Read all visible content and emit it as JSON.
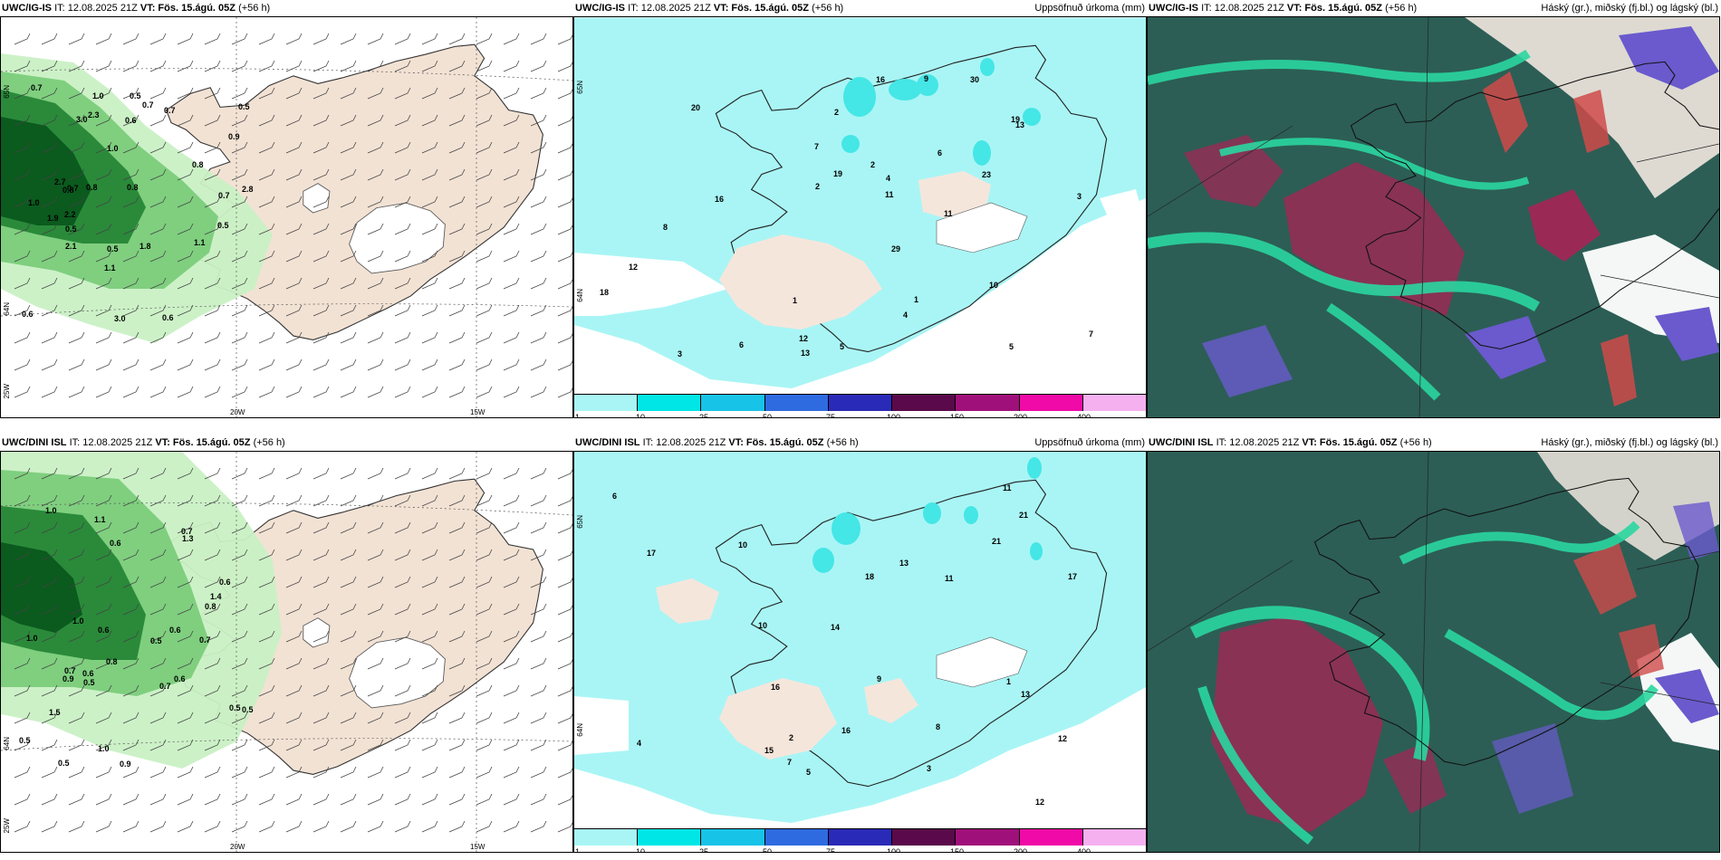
{
  "colors": {
    "sea_white": "#ffffff",
    "land_beige": "#f2e2d4",
    "precip_cyan": "#a9f5f5",
    "precip_cyan2": "#45e6e6",
    "wind_green_light": "#c9f0c4",
    "wind_green_mid": "#7fcf7f",
    "wind_green_dark": "#2a8a3a",
    "wind_green_darkest": "#0b5a1e",
    "cloud_teal": "#2c5e55",
    "cloud_green": "#2ad6a0",
    "cloud_maroon": "#9a2a55",
    "cloud_blue": "#6a5acd",
    "cloud_red": "#d04a4a"
  },
  "panels": [
    {
      "id": "top-left",
      "model": "UWC/IG-IS",
      "title_left": "IT: 12.08.2025 21Z",
      "vt_label": "VT: Fös. 15.ágú. 05Z",
      "lead": "(+56 h)",
      "title_right": "",
      "axis_labels": [
        "20W",
        "15W",
        "25W",
        "65N",
        "64N"
      ],
      "value_labels": [
        "0.7",
        "0.7",
        "0.5",
        "0.5",
        "1.0",
        "1.1",
        "1.0",
        "2.1",
        "1.9",
        "0.6",
        "0.6",
        "0.5",
        "3.0",
        "2.7",
        "1.8",
        "3.0",
        "2.8",
        "2.2",
        "2.3",
        "0.8",
        "1.0",
        "0.9",
        "0.7",
        "0.5",
        "1.1",
        "0.7",
        "0.8",
        "0.7",
        "0.5",
        "0.6",
        "0.8",
        "0.8"
      ]
    },
    {
      "id": "top-middle",
      "model": "UWC/IG-IS",
      "title_left": "IT: 12.08.2025 21Z",
      "vt_label": "VT: Fös. 15.ágú. 05Z",
      "lead": "(+56 h)",
      "title_right": "Uppsöfnuð úrkoma (mm)",
      "axis_labels": [
        "65N",
        "64N"
      ],
      "value_labels": [
        "13",
        "19",
        "29",
        "23",
        "12",
        "19",
        "20",
        "16",
        "18",
        "12",
        "16",
        "11",
        "30",
        "13",
        "10",
        "5",
        "4",
        "7",
        "6",
        "3",
        "2",
        "1",
        "8",
        "9",
        "11",
        "4",
        "5",
        "3",
        "2",
        "6",
        "7",
        "1",
        "2"
      ],
      "colorbar": [
        "1",
        "10",
        "25",
        "50",
        "75",
        "100",
        "150",
        "200",
        "400"
      ]
    },
    {
      "id": "top-right",
      "model": "UWC/IG-IS",
      "title_left": "IT: 12.08.2025 21Z",
      "vt_label": "VT: Fös. 15.ágú. 05Z",
      "lead": "(+56 h)",
      "title_right": "Háský (gr.), miðský (fj.bl.) og lágský (bl.)"
    },
    {
      "id": "bottom-left",
      "model": "UWC/DINI ISL",
      "title_left": "IT: 12.08.2025 21Z",
      "vt_label": "VT: Fös. 15.ágú. 05Z",
      "lead": "(+56 h)",
      "title_right": "",
      "axis_labels": [
        "20W",
        "15W",
        "25W",
        "64N"
      ],
      "value_labels": [
        "1.0",
        "0.6",
        "0.6",
        "0.9",
        "1.1",
        "0.8",
        "0.8",
        "1.0",
        "0.7",
        "0.7",
        "0.5",
        "1.3",
        "1.0",
        "0.5",
        "1.5",
        "1.4",
        "0.7",
        "0.6",
        "0.5",
        "0.9",
        "0.6",
        "0.5",
        "0.7",
        "0.6",
        "0.5",
        "1.0",
        "0.5",
        "0.6"
      ]
    },
    {
      "id": "bottom-middle",
      "model": "UWC/DINI ISL",
      "title_left": "IT: 12.08.2025 21Z",
      "vt_label": "VT: Fös. 15.ágú. 05Z",
      "lead": "(+56 h)",
      "title_right": "Uppsöfnuð úrkoma (mm)",
      "axis_labels": [
        "65N",
        "64N"
      ],
      "value_labels": [
        "17",
        "17",
        "21",
        "15",
        "16",
        "12",
        "18",
        "14",
        "13",
        "21",
        "11",
        "10",
        "9",
        "8",
        "7",
        "6",
        "5",
        "4",
        "3",
        "2",
        "1",
        "11",
        "12",
        "13",
        "16",
        "10"
      ],
      "colorbar": [
        "1",
        "10",
        "25",
        "50",
        "75",
        "100",
        "150",
        "200",
        "400"
      ]
    },
    {
      "id": "bottom-right",
      "model": "UWC/DINI ISL",
      "title_left": "IT: 12.08.2025 21Z",
      "vt_label": "VT: Fös. 15.ágú. 05Z",
      "lead": "(+56 h)",
      "title_right": "Háský (gr.), miðský (fj.bl.) og lágský (bl.)"
    }
  ]
}
